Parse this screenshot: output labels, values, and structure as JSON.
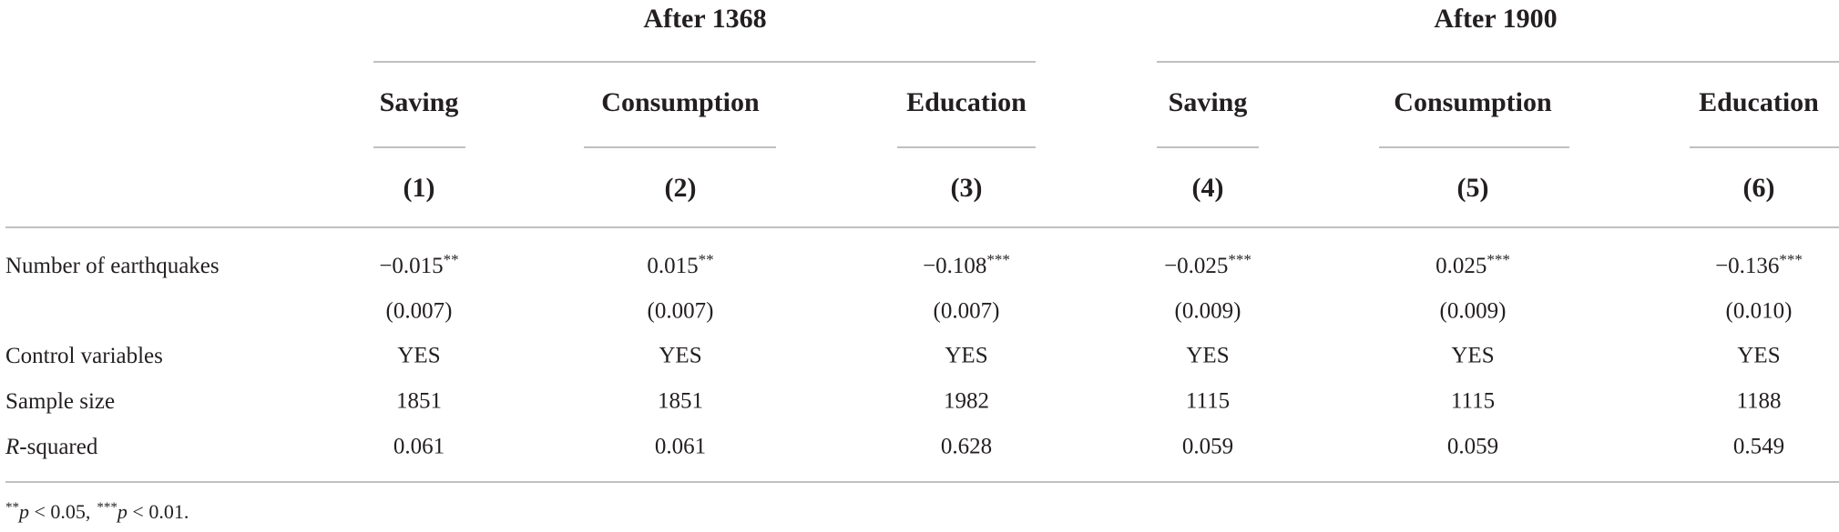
{
  "table": {
    "groups": [
      {
        "label": "After 1368"
      },
      {
        "label": "After 1900"
      }
    ],
    "columns": [
      "Saving",
      "Consumption",
      "Education",
      "Saving",
      "Consumption",
      "Education"
    ],
    "numbers": [
      "(1)",
      "(2)",
      "(3)",
      "(4)",
      "(5)",
      "(6)"
    ],
    "rows": [
      {
        "label": "Number of earthquakes",
        "cells": [
          {
            "text": "−0.015",
            "stars": "**"
          },
          {
            "text": "0.015",
            "stars": "**"
          },
          {
            "text": "−0.108",
            "stars": "***"
          },
          {
            "text": "−0.025",
            "stars": "***"
          },
          {
            "text": "0.025",
            "stars": "***"
          },
          {
            "text": "−0.136",
            "stars": "***"
          }
        ]
      },
      {
        "cells": [
          "(0.007)",
          "(0.007)",
          "(0.007)",
          "(0.009)",
          "(0.009)",
          "(0.010)"
        ]
      },
      {
        "label": "Control variables",
        "cells": [
          "YES",
          "YES",
          "YES",
          "YES",
          "YES",
          "YES"
        ]
      },
      {
        "label": "Sample size",
        "cells": [
          "1851",
          "1851",
          "1982",
          "1115",
          "1115",
          "1188"
        ]
      },
      {
        "label_italic": "R",
        "label": "-squared",
        "cells": [
          "0.061",
          "0.061",
          "0.628",
          "0.059",
          "0.059",
          "0.549"
        ]
      }
    ],
    "footnote": [
      {
        "stars": "**",
        "var": "p",
        "text": " < 0.05,"
      },
      {
        "stars": "***",
        "var": "p",
        "text": " < 0.01."
      }
    ]
  }
}
